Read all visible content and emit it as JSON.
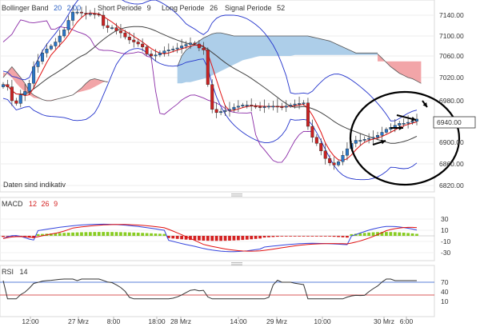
{
  "price_panel": {
    "legend": {
      "bb_name": "Bollinger Band",
      "bb_period": "20",
      "bb_dev": "2.00",
      "short_label": "Short Periode",
      "short_value": "9",
      "long_label": "Long Periode",
      "long_value": "26",
      "signal_label": "Signal Periode",
      "signal_value": "52"
    },
    "note": "Daten sind indikativ",
    "y_ticks": [
      "7140.00",
      "7100.00",
      "7060.00",
      "7020.00",
      "6980.00",
      "6900.00",
      "6860.00",
      "6820.00"
    ],
    "current_price": "6940.00",
    "colors": {
      "up": "#2a77c9",
      "down": "#cc2222",
      "bull_cloud": "#a9cbe8",
      "bear_cloud": "#f1a0a3",
      "sma": "#444444",
      "bands": "#2233cc",
      "lagging": "#8a2aa6",
      "fast": "#e01010"
    }
  },
  "macd_panel": {
    "title": "MACD",
    "p1": "12",
    "p2": "26",
    "p3": "9",
    "y_ticks": [
      "30",
      "10",
      "-10",
      "-30"
    ],
    "colors": {
      "pos": "#88cc22",
      "neg": "#d42222",
      "macd": "#3344dd",
      "signal": "#e01010"
    }
  },
  "rsi_panel": {
    "title": "RSI",
    "period": "14",
    "y_ticks": [
      "70",
      "40",
      "10"
    ],
    "colors": {
      "line": "#333333",
      "upper": "#2255cc",
      "lower": "#cc2222"
    }
  },
  "x_axis": {
    "labels": [
      {
        "text": "12:00",
        "small": false
      },
      {
        "text": "27 Mrz",
        "small": true
      },
      {
        "text": "8:00",
        "small": false
      },
      {
        "text": "18:00",
        "small": false
      },
      {
        "text": "28 Mrz",
        "small": true
      },
      {
        "text": "14:00",
        "small": false
      },
      {
        "text": "29 Mrz",
        "small": true
      },
      {
        "text": "10:00",
        "small": false
      },
      {
        "text": "30 Mrz",
        "small": true
      },
      {
        "text": "6:00",
        "small": false
      }
    ]
  }
}
